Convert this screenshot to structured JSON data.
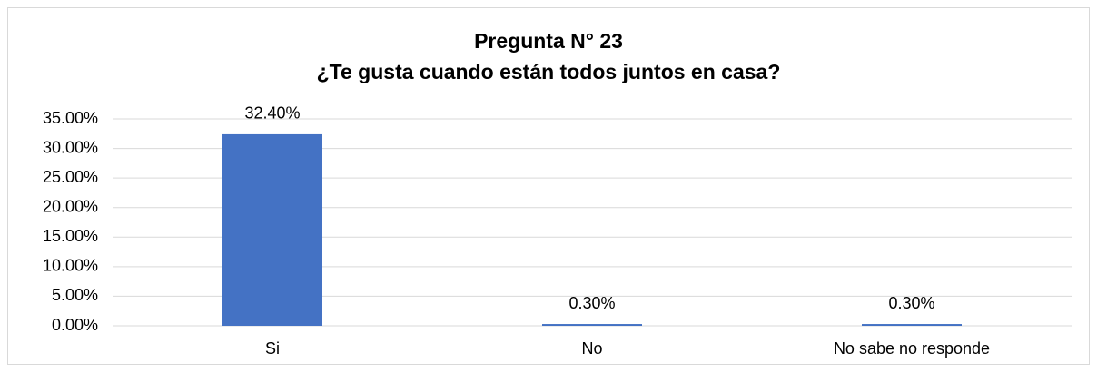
{
  "chart_data": {
    "type": "bar",
    "title": "Pregunta N° 23",
    "subtitle": "¿Te gusta cuando están todos juntos en casa?",
    "categories": [
      "Si",
      "No",
      "No sabe no responde"
    ],
    "values": [
      32.4,
      0.3,
      0.3
    ],
    "value_labels": [
      "32.40%",
      "0.30%",
      "0.30%"
    ],
    "color": "#4472c4",
    "ylim": [
      0,
      35
    ],
    "yticks": [
      {
        "value": 0,
        "label": "0.00%"
      },
      {
        "value": 5,
        "label": "5.00%"
      },
      {
        "value": 10,
        "label": "10.00%"
      },
      {
        "value": 15,
        "label": "15.00%"
      },
      {
        "value": 20,
        "label": "20.00%"
      },
      {
        "value": 25,
        "label": "25.00%"
      },
      {
        "value": 30,
        "label": "30.00%"
      },
      {
        "value": 35,
        "label": "35.00%"
      }
    ],
    "grid": true
  }
}
